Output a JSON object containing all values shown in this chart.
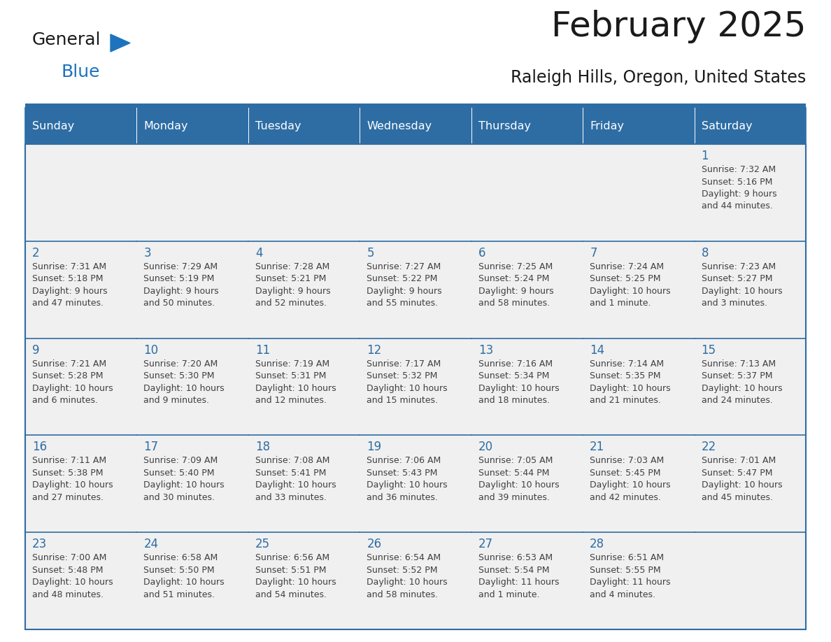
{
  "title": "February 2025",
  "subtitle": "Raleigh Hills, Oregon, United States",
  "header_bg": "#2E6DA4",
  "header_text_color": "#FFFFFF",
  "cell_bg": "#F0F0F0",
  "border_color": "#2E6DA4",
  "day_number_color": "#2E6DA4",
  "info_text_color": "#404040",
  "days_of_week": [
    "Sunday",
    "Monday",
    "Tuesday",
    "Wednesday",
    "Thursday",
    "Friday",
    "Saturday"
  ],
  "weeks": [
    [
      {
        "day": "",
        "info": ""
      },
      {
        "day": "",
        "info": ""
      },
      {
        "day": "",
        "info": ""
      },
      {
        "day": "",
        "info": ""
      },
      {
        "day": "",
        "info": ""
      },
      {
        "day": "",
        "info": ""
      },
      {
        "day": "1",
        "info": "Sunrise: 7:32 AM\nSunset: 5:16 PM\nDaylight: 9 hours\nand 44 minutes."
      }
    ],
    [
      {
        "day": "2",
        "info": "Sunrise: 7:31 AM\nSunset: 5:18 PM\nDaylight: 9 hours\nand 47 minutes."
      },
      {
        "day": "3",
        "info": "Sunrise: 7:29 AM\nSunset: 5:19 PM\nDaylight: 9 hours\nand 50 minutes."
      },
      {
        "day": "4",
        "info": "Sunrise: 7:28 AM\nSunset: 5:21 PM\nDaylight: 9 hours\nand 52 minutes."
      },
      {
        "day": "5",
        "info": "Sunrise: 7:27 AM\nSunset: 5:22 PM\nDaylight: 9 hours\nand 55 minutes."
      },
      {
        "day": "6",
        "info": "Sunrise: 7:25 AM\nSunset: 5:24 PM\nDaylight: 9 hours\nand 58 minutes."
      },
      {
        "day": "7",
        "info": "Sunrise: 7:24 AM\nSunset: 5:25 PM\nDaylight: 10 hours\nand 1 minute."
      },
      {
        "day": "8",
        "info": "Sunrise: 7:23 AM\nSunset: 5:27 PM\nDaylight: 10 hours\nand 3 minutes."
      }
    ],
    [
      {
        "day": "9",
        "info": "Sunrise: 7:21 AM\nSunset: 5:28 PM\nDaylight: 10 hours\nand 6 minutes."
      },
      {
        "day": "10",
        "info": "Sunrise: 7:20 AM\nSunset: 5:30 PM\nDaylight: 10 hours\nand 9 minutes."
      },
      {
        "day": "11",
        "info": "Sunrise: 7:19 AM\nSunset: 5:31 PM\nDaylight: 10 hours\nand 12 minutes."
      },
      {
        "day": "12",
        "info": "Sunrise: 7:17 AM\nSunset: 5:32 PM\nDaylight: 10 hours\nand 15 minutes."
      },
      {
        "day": "13",
        "info": "Sunrise: 7:16 AM\nSunset: 5:34 PM\nDaylight: 10 hours\nand 18 minutes."
      },
      {
        "day": "14",
        "info": "Sunrise: 7:14 AM\nSunset: 5:35 PM\nDaylight: 10 hours\nand 21 minutes."
      },
      {
        "day": "15",
        "info": "Sunrise: 7:13 AM\nSunset: 5:37 PM\nDaylight: 10 hours\nand 24 minutes."
      }
    ],
    [
      {
        "day": "16",
        "info": "Sunrise: 7:11 AM\nSunset: 5:38 PM\nDaylight: 10 hours\nand 27 minutes."
      },
      {
        "day": "17",
        "info": "Sunrise: 7:09 AM\nSunset: 5:40 PM\nDaylight: 10 hours\nand 30 minutes."
      },
      {
        "day": "18",
        "info": "Sunrise: 7:08 AM\nSunset: 5:41 PM\nDaylight: 10 hours\nand 33 minutes."
      },
      {
        "day": "19",
        "info": "Sunrise: 7:06 AM\nSunset: 5:43 PM\nDaylight: 10 hours\nand 36 minutes."
      },
      {
        "day": "20",
        "info": "Sunrise: 7:05 AM\nSunset: 5:44 PM\nDaylight: 10 hours\nand 39 minutes."
      },
      {
        "day": "21",
        "info": "Sunrise: 7:03 AM\nSunset: 5:45 PM\nDaylight: 10 hours\nand 42 minutes."
      },
      {
        "day": "22",
        "info": "Sunrise: 7:01 AM\nSunset: 5:47 PM\nDaylight: 10 hours\nand 45 minutes."
      }
    ],
    [
      {
        "day": "23",
        "info": "Sunrise: 7:00 AM\nSunset: 5:48 PM\nDaylight: 10 hours\nand 48 minutes."
      },
      {
        "day": "24",
        "info": "Sunrise: 6:58 AM\nSunset: 5:50 PM\nDaylight: 10 hours\nand 51 minutes."
      },
      {
        "day": "25",
        "info": "Sunrise: 6:56 AM\nSunset: 5:51 PM\nDaylight: 10 hours\nand 54 minutes."
      },
      {
        "day": "26",
        "info": "Sunrise: 6:54 AM\nSunset: 5:52 PM\nDaylight: 10 hours\nand 58 minutes."
      },
      {
        "day": "27",
        "info": "Sunrise: 6:53 AM\nSunset: 5:54 PM\nDaylight: 11 hours\nand 1 minute."
      },
      {
        "day": "28",
        "info": "Sunrise: 6:51 AM\nSunset: 5:55 PM\nDaylight: 11 hours\nand 4 minutes."
      },
      {
        "day": "",
        "info": ""
      }
    ]
  ],
  "logo_color_general": "#1a1a1a",
  "logo_color_blue": "#1E73BE",
  "logo_triangle_color": "#1E73BE",
  "title_color": "#1a1a1a",
  "subtitle_color": "#1a1a1a"
}
